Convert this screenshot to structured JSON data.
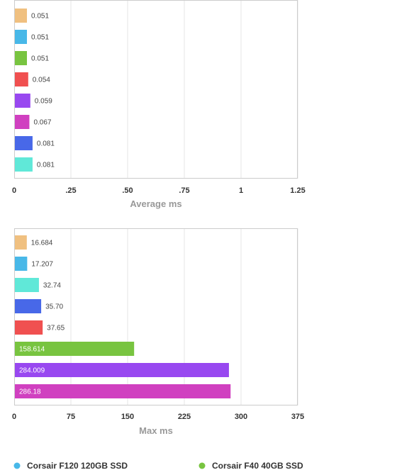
{
  "chart_data": [
    {
      "type": "bar",
      "orientation": "horizontal",
      "xlabel": "Average ms",
      "xlim": [
        0,
        1.25
      ],
      "ticks": [
        0,
        0.25,
        0.5,
        0.75,
        1,
        1.25
      ],
      "tick_labels": [
        "0",
        ".25",
        ".50",
        ".75",
        "1",
        "1.25"
      ],
      "grid": true,
      "bars": [
        {
          "value": 0.051,
          "label": "0.051",
          "color": "#f0c080"
        },
        {
          "value": 0.051,
          "label": "0.051",
          "color": "#48b8e8"
        },
        {
          "value": 0.051,
          "label": "0.051",
          "color": "#78c440"
        },
        {
          "value": 0.054,
          "label": "0.054",
          "color": "#f05050"
        },
        {
          "value": 0.059,
          "label": "0.059",
          "color": "#9848f0"
        },
        {
          "value": 0.067,
          "label": "0.067",
          "color": "#d040c0"
        },
        {
          "value": 0.081,
          "label": "0.081",
          "color": "#4868e8"
        },
        {
          "value": 0.081,
          "label": "0.081",
          "color": "#60e8d8"
        }
      ]
    },
    {
      "type": "bar",
      "orientation": "horizontal",
      "xlabel": "Max ms",
      "xlim": [
        0,
        375
      ],
      "ticks": [
        0,
        75,
        150,
        225,
        300,
        375
      ],
      "tick_labels": [
        "0",
        "75",
        "150",
        "225",
        "300",
        "375"
      ],
      "grid": true,
      "bars": [
        {
          "value": 16.684,
          "label": "16.684",
          "color": "#f0c080"
        },
        {
          "value": 17.207,
          "label": "17.207",
          "color": "#48b8e8"
        },
        {
          "value": 32.74,
          "label": "32.74",
          "color": "#60e8d8"
        },
        {
          "value": 35.7,
          "label": "35.70",
          "color": "#4868e8"
        },
        {
          "value": 37.65,
          "label": "37.65",
          "color": "#f05050"
        },
        {
          "value": 158.614,
          "label": "158.614",
          "color": "#78c440"
        },
        {
          "value": 284.009,
          "label": "284.009",
          "color": "#9848f0"
        },
        {
          "value": 286.18,
          "label": "286.18",
          "color": "#d040c0"
        }
      ]
    }
  ],
  "legend": [
    {
      "label": "Corsair F120 120GB SSD",
      "color": "#48b8e8"
    },
    {
      "label": "Corsair F40 40GB SSD",
      "color": "#78c440"
    }
  ]
}
